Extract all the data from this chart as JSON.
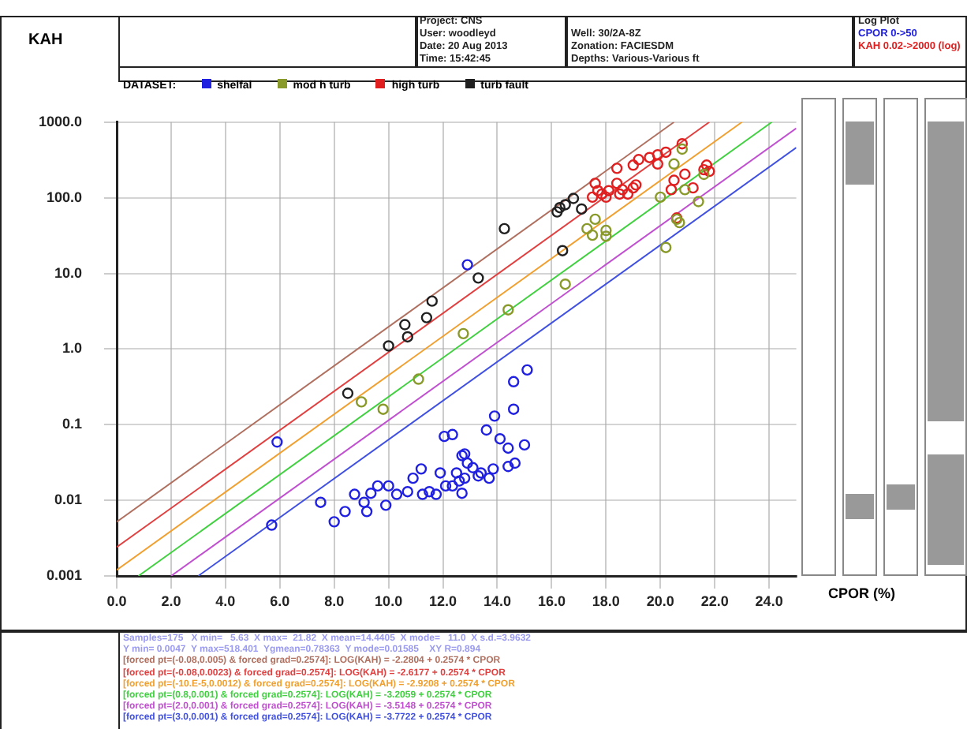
{
  "chart_data": {
    "type": "scatter",
    "ylabel": "KAH",
    "xlabel": "CPOR (%)",
    "legend_title": "DATASET:",
    "legend": "top left",
    "log": "y",
    "grid": true,
    "marker": "circle",
    "xlim": [
      0,
      25
    ],
    "ylim": [
      0.001,
      1000
    ],
    "xticks": [
      {
        "value": 0,
        "label": "0.0"
      },
      {
        "value": 2,
        "label": "2.0"
      },
      {
        "value": 4,
        "label": "4.0"
      },
      {
        "value": 6,
        "label": "6.0"
      },
      {
        "value": 8,
        "label": "8.0"
      },
      {
        "value": 10,
        "label": "10.0"
      },
      {
        "value": 12,
        "label": "12.0"
      },
      {
        "value": 14,
        "label": "14.0"
      },
      {
        "value": 16,
        "label": "16.0"
      },
      {
        "value": 18,
        "label": "18.0"
      },
      {
        "value": 20,
        "label": "20.0"
      },
      {
        "value": 22,
        "label": "22.0"
      },
      {
        "value": 24,
        "label": "24.0"
      }
    ],
    "yticks": [
      {
        "value": 0.001,
        "label": "0.001"
      },
      {
        "value": 0.01,
        "label": "0.01"
      },
      {
        "value": 0.1,
        "label": "0.1"
      },
      {
        "value": 1,
        "label": "1.0"
      },
      {
        "value": 10,
        "label": "10.0"
      },
      {
        "value": 100,
        "label": "100.0"
      },
      {
        "value": 1000,
        "label": "1000.0"
      }
    ],
    "series": [
      {
        "name": "shelfal",
        "color": "#2020e0",
        "x": [
          12.9,
          15.1,
          14.6,
          14.6,
          13.9,
          5.9,
          5.7,
          7.5,
          8.0,
          8.4,
          8.75,
          9.1,
          9.2,
          9.35,
          9.6,
          9.9,
          10.0,
          10.3,
          10.7,
          10.9,
          11.2,
          11.25,
          11.5,
          11.75,
          11.9,
          12.05,
          12.35,
          12.1,
          12.5,
          12.7,
          12.9,
          12.8,
          13.6,
          14.1,
          14.4,
          15.0,
          14.65,
          14.4,
          13.7,
          13.4,
          13.1,
          12.8,
          12.35,
          12.6,
          13.3,
          13.85,
          12.7
        ],
        "values": [
          13,
          0.53,
          0.37,
          0.16,
          0.13,
          0.059,
          0.0047,
          0.0094,
          0.0052,
          0.0071,
          0.012,
          0.0094,
          0.0071,
          0.0124,
          0.0155,
          0.0086,
          0.0155,
          0.012,
          0.013,
          0.0196,
          0.026,
          0.012,
          0.013,
          0.012,
          0.023,
          0.07,
          0.074,
          0.0155,
          0.023,
          0.039,
          0.031,
          0.041,
          0.085,
          0.065,
          0.049,
          0.054,
          0.031,
          0.028,
          0.0196,
          0.023,
          0.027,
          0.0196,
          0.0155,
          0.018,
          0.021,
          0.026,
          0.0124
        ]
      },
      {
        "name": "mod h turb",
        "color": "#8a9a2a",
        "x": [
          12.75,
          11.1,
          9.0,
          9.8,
          14.4,
          16.5,
          17.6,
          17.3,
          17.5,
          18.0,
          18.0,
          20.0,
          20.2,
          20.5,
          20.6,
          20.7,
          20.8,
          20.9,
          21.4,
          21.6
        ],
        "values": [
          1.6,
          0.4,
          0.2,
          0.16,
          3.3,
          7.2,
          52,
          39,
          32,
          37,
          31,
          102,
          22,
          280,
          52,
          47,
          440,
          128,
          89,
          204
        ]
      },
      {
        "name": "high turb",
        "color": "#e02020",
        "x": [
          20.8,
          20.2,
          19.9,
          19.6,
          19.2,
          19.0,
          19.9,
          18.4,
          17.6,
          17.5,
          17.85,
          18.1,
          18.4,
          18.6,
          18.8,
          19.0,
          19.1,
          18.0,
          18.5,
          17.7,
          20.5,
          20.4,
          20.9,
          21.2,
          21.6,
          21.7,
          21.8,
          20.6
        ],
        "values": [
          518,
          400,
          370,
          340,
          320,
          270,
          280,
          245,
          155,
          102,
          112,
          124,
          155,
          128,
          112,
          135,
          148,
          102,
          112,
          124,
          170,
          128,
          205,
          135,
          235,
          270,
          224,
          54
        ]
      },
      {
        "name": "turb fault",
        "color": "#202020",
        "x": [
          11.6,
          11.4,
          10.6,
          10.7,
          10.0,
          8.5,
          14.26,
          13.3,
          16.2,
          16.3,
          16.5,
          16.8,
          17.1,
          16.4
        ],
        "values": [
          4.3,
          2.6,
          2.1,
          1.45,
          1.1,
          0.26,
          39,
          8.7,
          65,
          74,
          81,
          98,
          71,
          20
        ]
      },
      {
        "type": "line",
        "marker": "none",
        "color": "#b07060",
        "x": [
          0,
          20.5
        ],
        "values": [
          0.0052,
          1000
        ]
      },
      {
        "type": "line",
        "marker": "none",
        "color": "#e04040",
        "x": [
          0,
          21.8
        ],
        "values": [
          0.0024,
          1000
        ]
      },
      {
        "type": "line",
        "marker": "none",
        "color": "#f0a030",
        "x": [
          0,
          23.0
        ],
        "values": [
          0.0012,
          1000
        ]
      },
      {
        "type": "line",
        "marker": "none",
        "color": "#40d040",
        "x": [
          0.8,
          24.1
        ],
        "values": [
          0.001,
          1000
        ]
      },
      {
        "type": "line",
        "marker": "none",
        "color": "#c050d0",
        "x": [
          2.0,
          25
        ],
        "values": [
          0.001,
          830
        ]
      },
      {
        "type": "line",
        "marker": "none",
        "color": "#4050e0",
        "x": [
          3.0,
          25
        ],
        "values": [
          0.001,
          460
        ]
      }
    ],
    "annotations": [
      "Project: CNS",
      "User: woodleyd",
      "Date: 20 Aug 2013",
      "Time: 15:42:45",
      "Well: 30/2A-8Z",
      "Zonation: FACIESDM",
      "Depths: Various-Various ft",
      "Log Plot",
      "CPOR 0->50",
      "KAH 0.02->2000 (log)",
      "Samples=175   X min=   5.63  X max=  21.82  X mean=14.4405  X mode=   11.0  X s.d.=3.9632",
      "Y min= 0.0047  Y max=518.401  Ygmean=0.78363  Y mode=0.01585    XY R=0.894",
      "[forced pt=(-0.08,0.005) & forced grad=0.2574]: LOG(KAH) = -2.2804 + 0.2574 * CPOR",
      "[forced pt=(-0.08,0.0023) & forced grad=0.2574]: LOG(KAH) = -2.6177 + 0.2574 * CPOR",
      "[forced pt=(-10.E-5,0.0012) & forced grad=0.2574]: LOG(KAH) = -2.9208 + 0.2574 * CPOR",
      "[forced pt=(0.8,0.001) & forced grad=0.2574]: LOG(KAH) = -3.2059 + 0.2574 * CPOR",
      "[forced pt=(2.0,0.001) & forced grad=0.2574]: LOG(KAH) = -3.5148 + 0.2574 * CPOR",
      "[forced pt=(3.0,0.001) & forced grad=0.2574]: LOG(KAH) = -3.7722 + 0.2574 * CPOR"
    ]
  }
}
